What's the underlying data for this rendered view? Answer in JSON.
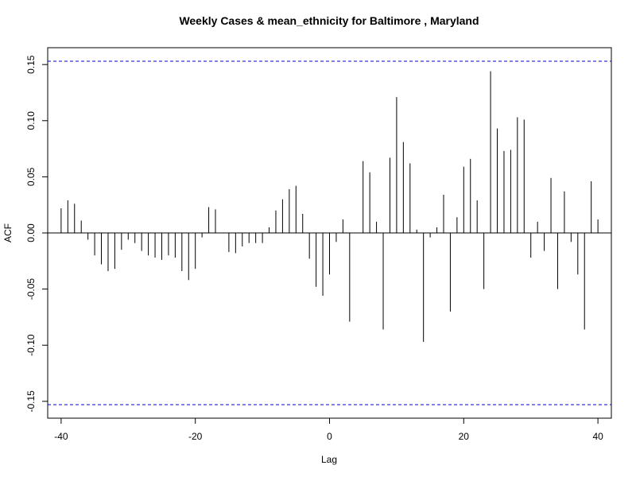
{
  "chart_data": {
    "type": "bar",
    "title": "Weekly Cases & mean_ethnicity for Baltimore , Maryland",
    "xlabel": "Lag",
    "ylabel": "ACF",
    "xlim": [
      -42,
      42
    ],
    "ylim": [
      -0.165,
      0.165
    ],
    "x_ticks": [
      "-40",
      "-20",
      "0",
      "20",
      "40"
    ],
    "y_ticks": [
      "-0.15",
      "-0.10",
      "-0.05",
      "0.00",
      "0.05",
      "0.10",
      "0.15"
    ],
    "confidence_bound": 0.153,
    "colors": {
      "bars": "#000000",
      "bounds": "#0000cc",
      "zero_line": "#000000"
    },
    "lags": [
      -40,
      -39,
      -38,
      -37,
      -36,
      -35,
      -34,
      -33,
      -32,
      -31,
      -30,
      -29,
      -28,
      -27,
      -26,
      -25,
      -24,
      -23,
      -22,
      -21,
      -20,
      -19,
      -18,
      -17,
      -16,
      -15,
      -14,
      -13,
      -12,
      -11,
      -10,
      -9,
      -8,
      -7,
      -6,
      -5,
      -4,
      -3,
      -2,
      -1,
      0,
      1,
      2,
      3,
      4,
      5,
      6,
      7,
      8,
      9,
      10,
      11,
      12,
      13,
      14,
      15,
      16,
      17,
      18,
      19,
      20,
      21,
      22,
      23,
      24,
      25,
      26,
      27,
      28,
      29,
      30,
      31,
      32,
      33,
      34,
      35,
      36,
      37,
      38,
      39,
      40
    ],
    "values": [
      0.022,
      0.029,
      0.026,
      0.011,
      -0.006,
      -0.02,
      -0.028,
      -0.034,
      -0.032,
      -0.015,
      -0.006,
      -0.009,
      -0.016,
      -0.02,
      -0.022,
      -0.024,
      -0.02,
      -0.022,
      -0.034,
      -0.042,
      -0.032,
      -0.004,
      0.023,
      0.021,
      0.0,
      -0.017,
      -0.018,
      -0.012,
      -0.009,
      -0.009,
      -0.009,
      0.005,
      0.02,
      0.03,
      0.039,
      0.042,
      0.017,
      -0.023,
      -0.048,
      -0.056,
      -0.037,
      -0.008,
      0.012,
      -0.079,
      0.0,
      0.064,
      0.054,
      0.01,
      -0.086,
      0.067,
      0.121,
      0.081,
      0.062,
      0.003,
      -0.097,
      -0.004,
      0.005,
      0.034,
      -0.07,
      0.014,
      0.059,
      0.066,
      0.029,
      -0.05,
      0.144,
      0.093,
      0.073,
      0.074,
      0.103,
      0.101,
      -0.022,
      0.01,
      -0.016,
      0.049,
      -0.05,
      0.037,
      -0.008,
      -0.037,
      -0.086,
      0.046,
      0.012
    ]
  }
}
